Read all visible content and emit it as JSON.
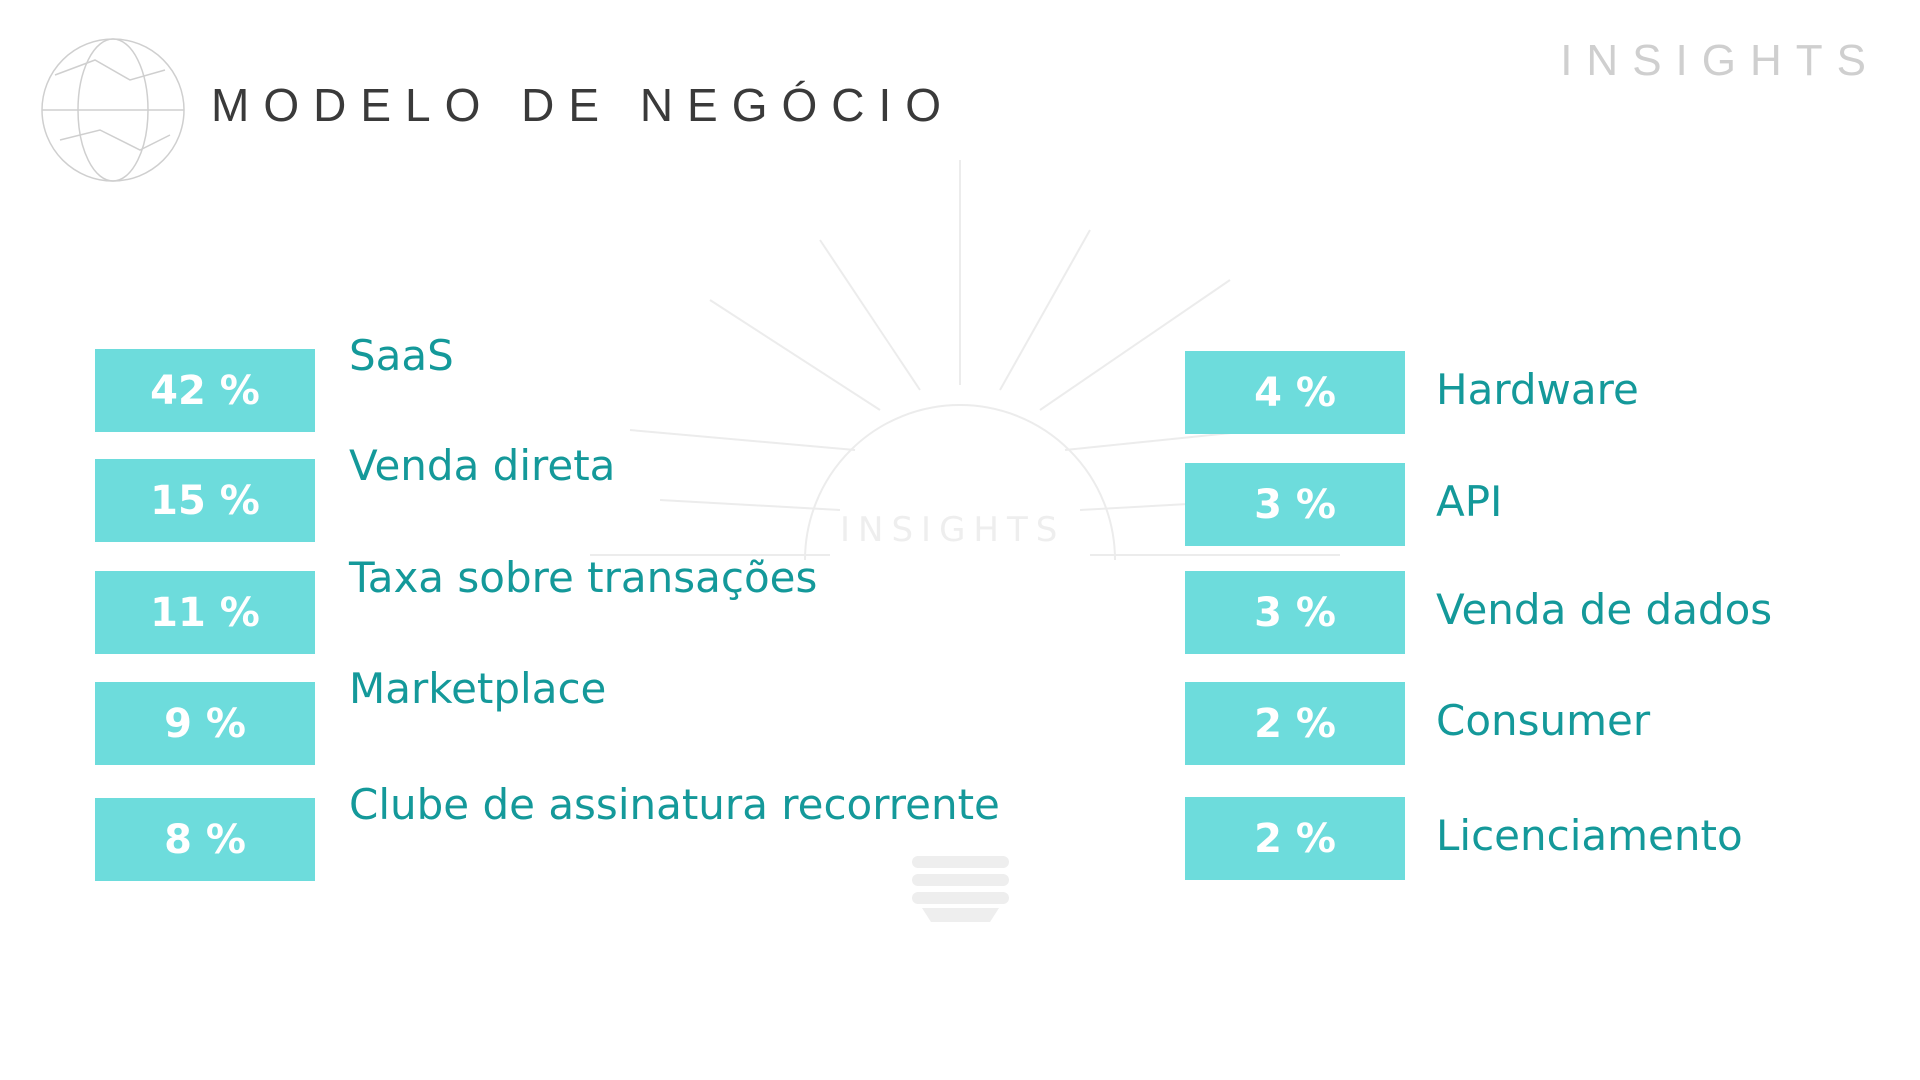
{
  "header": {
    "title": "MODELO DE NEGÓCIO",
    "brand": "INSIGHTS"
  },
  "watermark": "INSIGHTS",
  "left": [
    {
      "percent": "42 %",
      "label": "SaaS"
    },
    {
      "percent": "15 %",
      "label": "Venda direta"
    },
    {
      "percent": "11 %",
      "label": "Taxa sobre transações"
    },
    {
      "percent": "9 %",
      "label": "Marketplace"
    },
    {
      "percent": "8 %",
      "label": "Clube de assinatura recorrente"
    }
  ],
  "right": [
    {
      "percent": "4 %",
      "label": "Hardware"
    },
    {
      "percent": "3 %",
      "label": "API"
    },
    {
      "percent": "3 %",
      "label": "Venda de dados"
    },
    {
      "percent": "2 %",
      "label": "Consumer"
    },
    {
      "percent": "2 %",
      "label": "Licenciamento"
    }
  ]
}
